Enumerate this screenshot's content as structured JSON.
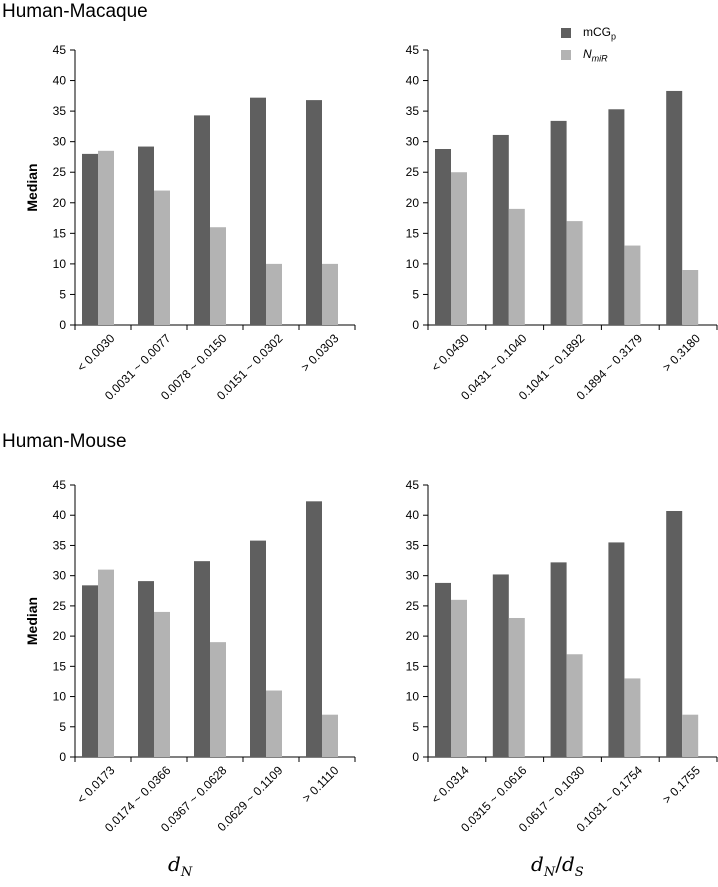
{
  "panels": {
    "top_title": "Human-Macaque",
    "bottom_title": "Human-Mouse"
  },
  "legend": {
    "series1": "mCG",
    "series1_sub": "p",
    "series2": "N",
    "series2_sub": "miR"
  },
  "xlabels": {
    "left": "d",
    "left_sub": "N",
    "right_a": "d",
    "right_a_sub": "N",
    "right_sep": "/",
    "right_b": "d",
    "right_b_sub": "S"
  },
  "colors": {
    "series1": "#5f5f5f",
    "series2": "#b3b3b3",
    "axis": "#000000"
  },
  "chart_data": [
    {
      "type": "bar",
      "panel": "Human-Macaque",
      "ylabel": "Median",
      "ylim": [
        0,
        45
      ],
      "yticks": [
        0,
        5,
        10,
        15,
        20,
        25,
        30,
        35,
        40,
        45
      ],
      "categories": [
        "< 0.0030",
        "0.0031 ~ 0.0077",
        "0.0078 ~ 0.0150",
        "0.0151 ~ 0.0302",
        "> 0.0303"
      ],
      "series": [
        {
          "name": "mCGp",
          "values": [
            28,
            29.2,
            34.3,
            37.2,
            36.8
          ]
        },
        {
          "name": "NmiR",
          "values": [
            28.5,
            22,
            16,
            10,
            10
          ]
        }
      ]
    },
    {
      "type": "bar",
      "panel": "Human-Macaque",
      "ylabel": "",
      "ylim": [
        0,
        45
      ],
      "yticks": [
        0,
        5,
        10,
        15,
        20,
        25,
        30,
        35,
        40,
        45
      ],
      "categories": [
        "< 0.0430",
        "0.0431 ~ 0.1040",
        "0.1041 ~ 0.1892",
        "0.1894 ~ 0.3179",
        "> 0.3180"
      ],
      "series": [
        {
          "name": "mCGp",
          "values": [
            28.8,
            31.1,
            33.4,
            35.3,
            38.3
          ]
        },
        {
          "name": "NmiR",
          "values": [
            25,
            19,
            17,
            13,
            9
          ]
        }
      ]
    },
    {
      "type": "bar",
      "panel": "Human-Mouse",
      "ylabel": "Median",
      "ylim": [
        0,
        45
      ],
      "yticks": [
        0,
        5,
        10,
        15,
        20,
        25,
        30,
        35,
        40,
        45
      ],
      "categories": [
        "< 0.0173",
        "0.0174 ~ 0.0366",
        "0.0367 ~ 0.0628",
        "0.0629 ~ 0.1109",
        "> 0.1110"
      ],
      "series": [
        {
          "name": "mCGp",
          "values": [
            28.4,
            29.1,
            32.4,
            35.8,
            42.3
          ]
        },
        {
          "name": "NmiR",
          "values": [
            31,
            24,
            19,
            11,
            7
          ]
        }
      ]
    },
    {
      "type": "bar",
      "panel": "Human-Mouse",
      "ylabel": "",
      "ylim": [
        0,
        45
      ],
      "yticks": [
        0,
        5,
        10,
        15,
        20,
        25,
        30,
        35,
        40,
        45
      ],
      "categories": [
        "< 0.0314",
        "0.0315 ~ 0.0616",
        "0.0617 ~ 0.1030",
        "0.1031 ~ 0.1754",
        "> 0.1755"
      ],
      "series": [
        {
          "name": "mCGp",
          "values": [
            28.8,
            30.2,
            32.2,
            35.5,
            40.7
          ]
        },
        {
          "name": "NmiR",
          "values": [
            26,
            23,
            17,
            13,
            7
          ]
        }
      ]
    }
  ]
}
